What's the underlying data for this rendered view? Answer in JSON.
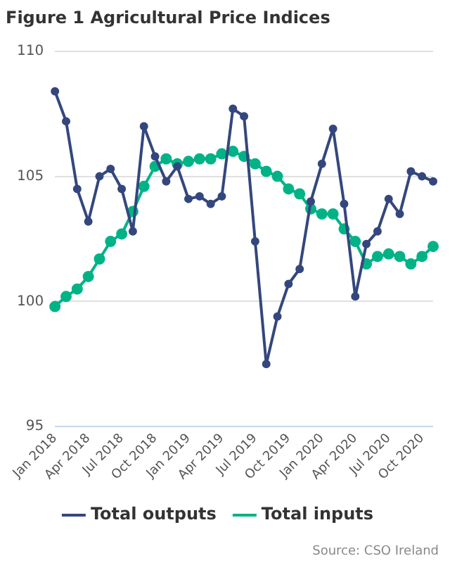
{
  "chart_data": {
    "type": "line",
    "title": "Figure 1 Agricultural Price Indices",
    "categories": [
      "Jan 2018",
      null,
      null,
      "Apr 2018",
      null,
      null,
      "Jul 2018",
      null,
      null,
      "Oct 2018",
      null,
      null,
      "Jan 2019",
      null,
      null,
      "Apr 2019",
      null,
      null,
      "Jul 2019",
      null,
      null,
      "Oct 2019",
      null,
      null,
      "Jan 2020",
      null,
      null,
      "Apr 2020",
      null,
      null,
      "Jul 2020",
      null,
      null,
      "Oct 2020",
      null
    ],
    "series": [
      {
        "name": "Total outputs",
        "color": "#34477d",
        "values": [
          108.4,
          107.2,
          104.5,
          103.2,
          105.0,
          105.3,
          104.5,
          102.8,
          107.0,
          105.8,
          104.8,
          105.4,
          104.1,
          104.2,
          103.9,
          104.2,
          107.7,
          107.4,
          102.4,
          97.5,
          99.4,
          100.7,
          101.3,
          104.0,
          105.5,
          106.9,
          103.9,
          100.2,
          102.3,
          102.8,
          104.1,
          103.5,
          105.2,
          105.0,
          104.8
        ]
      },
      {
        "name": "Total inputs",
        "color": "#00b386",
        "values": [
          99.8,
          100.2,
          100.5,
          101.0,
          101.7,
          102.4,
          102.7,
          103.6,
          104.6,
          105.4,
          105.7,
          105.5,
          105.6,
          105.7,
          105.7,
          105.9,
          106.0,
          105.8,
          105.5,
          105.2,
          105.0,
          104.5,
          104.3,
          103.7,
          103.5,
          103.5,
          102.9,
          102.4,
          101.5,
          101.8,
          101.9,
          101.8,
          101.5,
          101.8,
          102.2
        ]
      }
    ],
    "ylim": [
      95,
      110
    ],
    "yticks": [
      95,
      100,
      105,
      110
    ],
    "grid": "y",
    "legend": "bottom",
    "marker": "circle",
    "line_style": "solid",
    "annotations": [
      "Source: CSO Ireland"
    ]
  }
}
